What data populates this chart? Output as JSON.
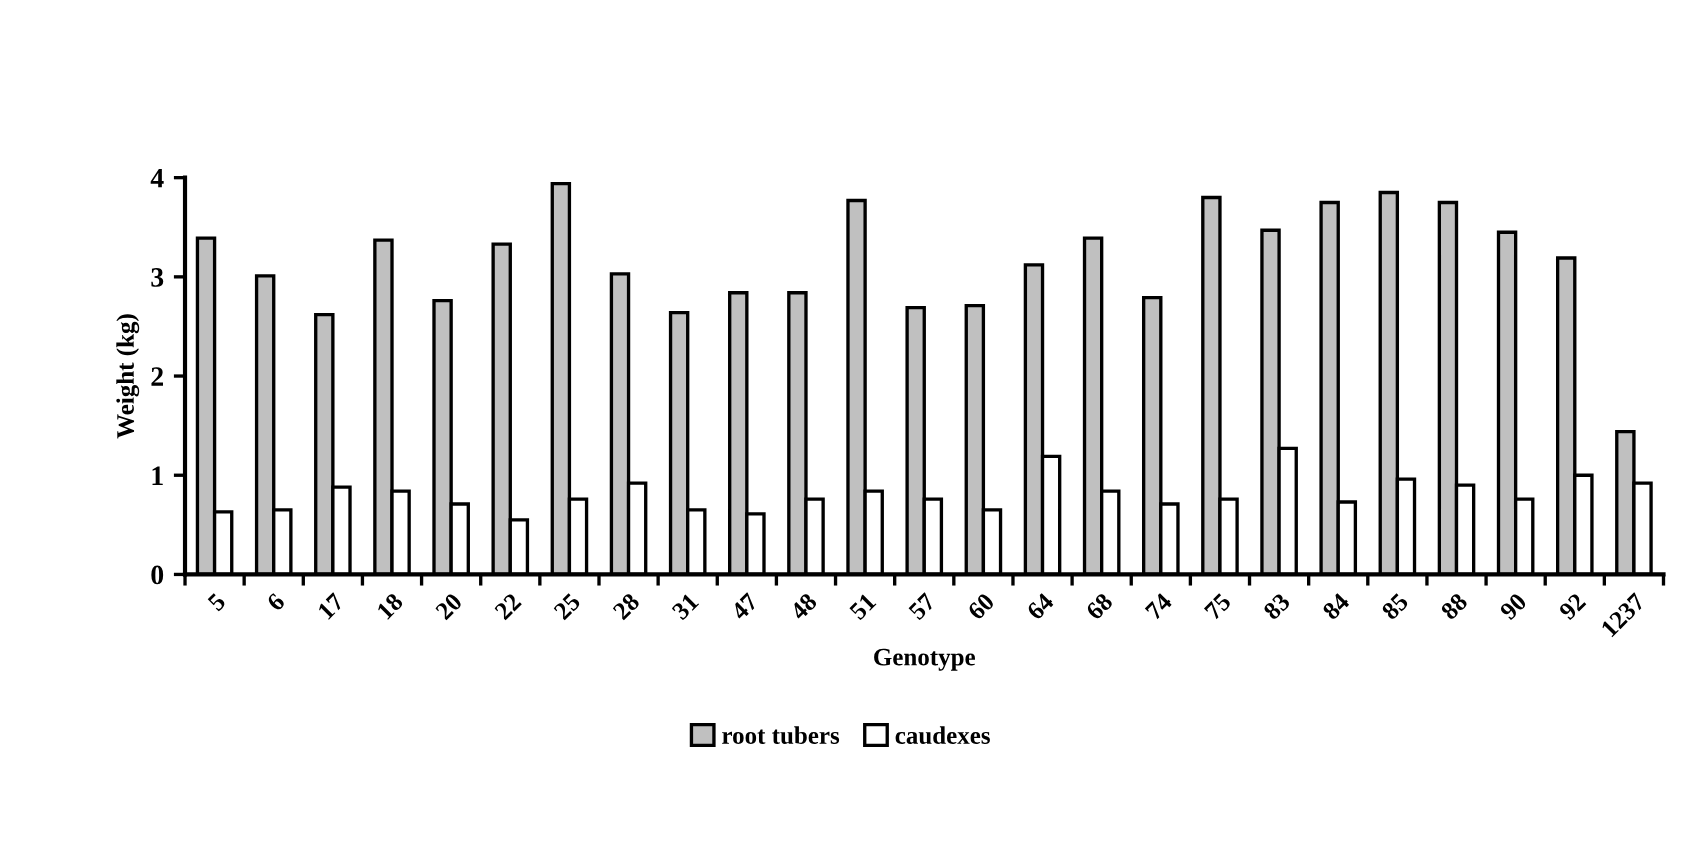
{
  "chart_data": {
    "type": "bar",
    "xlabel": "Genotype",
    "ylabel": "Weight (kg)",
    "categories": [
      "5",
      "6",
      "17",
      "18",
      "20",
      "22",
      "25",
      "28",
      "31",
      "47",
      "48",
      "51",
      "57",
      "60",
      "64",
      "68",
      "74",
      "75",
      "83",
      "84",
      "85",
      "88",
      "90",
      "92",
      "1237"
    ],
    "series": [
      {
        "name": "root tubers",
        "color": "#c0c0c0",
        "values": [
          3.39,
          3.01,
          2.62,
          3.37,
          2.76,
          3.33,
          3.94,
          3.03,
          2.64,
          2.84,
          2.84,
          3.77,
          2.69,
          2.71,
          3.12,
          3.39,
          2.79,
          3.8,
          3.47,
          3.75,
          3.85,
          3.75,
          3.45,
          3.19,
          1.44
        ]
      },
      {
        "name": "caudexes",
        "color": "#ffffff",
        "values": [
          0.63,
          0.65,
          0.88,
          0.84,
          0.71,
          0.55,
          0.76,
          0.92,
          0.65,
          0.61,
          0.76,
          0.84,
          0.76,
          0.65,
          1.19,
          0.84,
          0.71,
          0.76,
          1.27,
          0.73,
          0.96,
          0.9,
          0.76,
          1.0,
          0.92
        ]
      }
    ],
    "ylim": [
      0,
      4
    ],
    "yticks": [
      0,
      1,
      2,
      3,
      4
    ],
    "grid": false,
    "legend": "bottom"
  }
}
